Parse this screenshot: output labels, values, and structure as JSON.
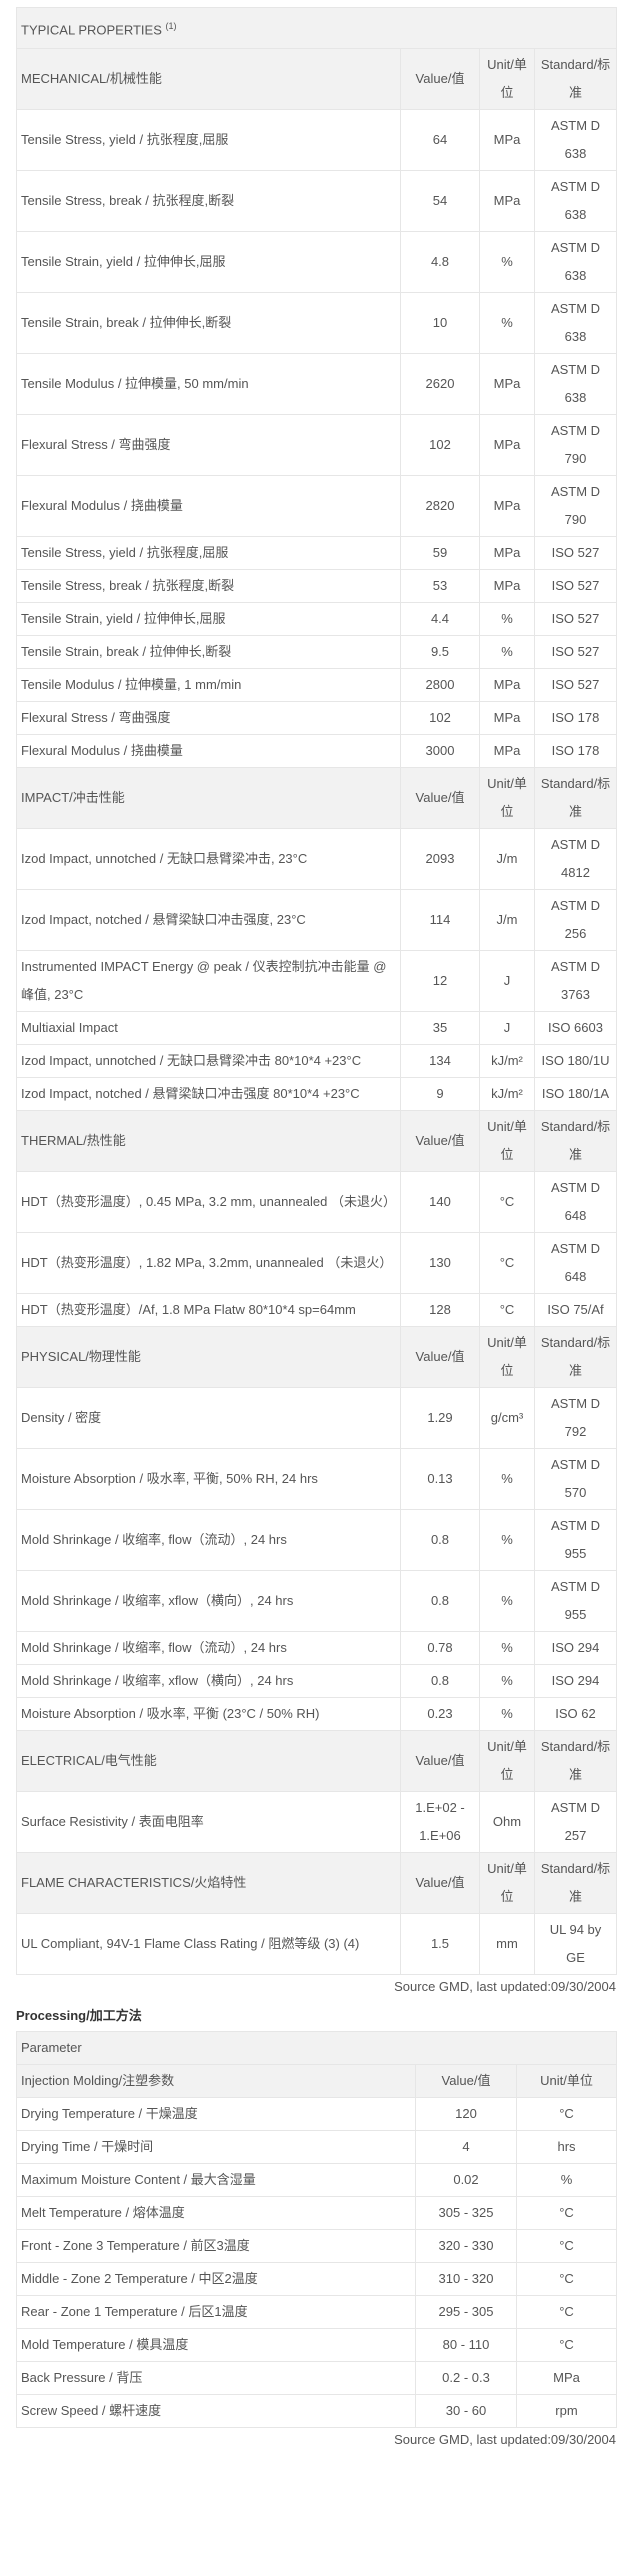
{
  "properties": {
    "title": "TYPICAL PROPERTIES",
    "title_note": "(1)",
    "value_label": "Value/值",
    "unit_label": "Unit/单位",
    "standard_label": "Standard/标准",
    "sections": [
      {
        "label": "MECHANICAL/机械性能",
        "rows": [
          [
            "Tensile Stress, yield / 抗张程度,屈服",
            "64",
            "MPa",
            "ASTM D 638"
          ],
          [
            "Tensile Stress, break / 抗张程度,断裂",
            "54",
            "MPa",
            "ASTM D 638"
          ],
          [
            "Tensile Strain, yield / 拉伸伸长,屈服",
            "4.8",
            "%",
            "ASTM D 638"
          ],
          [
            "Tensile Strain, break / 拉伸伸长,断裂",
            "10",
            "%",
            "ASTM D 638"
          ],
          [
            "Tensile Modulus / 拉伸模量, 50 mm/min",
            "2620",
            "MPa",
            "ASTM D 638"
          ],
          [
            "Flexural Stress / 弯曲强度",
            "102",
            "MPa",
            "ASTM D 790"
          ],
          [
            "Flexural Modulus / 挠曲模量",
            "2820",
            "MPa",
            "ASTM D 790"
          ],
          [
            "Tensile Stress, yield / 抗张程度,屈服",
            "59",
            "MPa",
            "ISO 527"
          ],
          [
            "Tensile Stress, break / 抗张程度,断裂",
            "53",
            "MPa",
            "ISO 527"
          ],
          [
            "Tensile Strain, yield / 拉伸伸长,屈服",
            "4.4",
            "%",
            "ISO 527"
          ],
          [
            "Tensile Strain, break / 拉伸伸长,断裂",
            "9.5",
            "%",
            "ISO 527"
          ],
          [
            "Tensile Modulus / 拉伸模量, 1 mm/min",
            "2800",
            "MPa",
            "ISO 527"
          ],
          [
            "Flexural Stress / 弯曲强度",
            "102",
            "MPa",
            "ISO 178"
          ],
          [
            "Flexural Modulus / 挠曲模量",
            "3000",
            "MPa",
            "ISO 178"
          ]
        ]
      },
      {
        "label": "IMPACT/冲击性能",
        "rows": [
          [
            "Izod Impact, unnotched / 无缺口悬臂梁冲击, 23°C",
            "2093",
            "J/m",
            "ASTM D 4812"
          ],
          [
            "Izod Impact, notched / 悬臂梁缺口冲击强度, 23°C",
            "114",
            "J/m",
            "ASTM D 256"
          ],
          [
            "Instrumented IMPACT Energy @ peak / 仪表控制抗冲击能量 @ 峰值, 23°C",
            "12",
            "J",
            "ASTM D 3763"
          ],
          [
            "Multiaxial Impact",
            "35",
            "J",
            "ISO 6603"
          ],
          [
            "Izod Impact, unnotched / 无缺口悬臂梁冲击 80*10*4 +23°C",
            "134",
            "kJ/m²",
            "ISO 180/1U"
          ],
          [
            "Izod Impact, notched / 悬臂梁缺口冲击强度 80*10*4 +23°C",
            "9",
            "kJ/m²",
            "ISO 180/1A"
          ]
        ]
      },
      {
        "label": "THERMAL/热性能",
        "rows": [
          [
            "HDT（热变形温度）, 0.45 MPa, 3.2 mm, unannealed （未退火）",
            "140",
            "°C",
            "ASTM D 648"
          ],
          [
            "HDT（热变形温度）, 1.82 MPa, 3.2mm, unannealed （未退火）",
            "130",
            "°C",
            "ASTM D 648"
          ],
          [
            "HDT（热变形温度）/Af, 1.8 MPa Flatw 80*10*4 sp=64mm",
            "128",
            "°C",
            "ISO 75/Af"
          ]
        ]
      },
      {
        "label": "PHYSICAL/物理性能",
        "rows": [
          [
            "Density / 密度",
            "1.29",
            "g/cm³",
            "ASTM D 792"
          ],
          [
            "Moisture Absorption / 吸水率, 平衡, 50% RH, 24 hrs",
            "0.13",
            "%",
            "ASTM D 570"
          ],
          [
            "Mold Shrinkage / 收缩率, flow（流动）, 24 hrs",
            "0.8",
            "%",
            "ASTM D 955"
          ],
          [
            "Mold Shrinkage / 收缩率, xflow（横向）, 24 hrs",
            "0.8",
            "%",
            "ASTM D 955"
          ],
          [
            "Mold Shrinkage / 收缩率, flow（流动）, 24 hrs",
            "0.78",
            "%",
            "ISO 294"
          ],
          [
            "Mold Shrinkage / 收缩率, xflow（横向）, 24 hrs",
            "0.8",
            "%",
            "ISO 294"
          ],
          [
            "Moisture Absorption / 吸水率, 平衡 (23°C / 50% RH)",
            "0.23",
            "%",
            "ISO 62"
          ]
        ]
      },
      {
        "label": "ELECTRICAL/电气性能",
        "rows": [
          [
            "Surface Resistivity / 表面电阻率",
            "1.E+02 - 1.E+06",
            "Ohm",
            "ASTM D 257"
          ]
        ]
      },
      {
        "label": "FLAME CHARACTERISTICS/火焰特性",
        "rows": [
          [
            "UL Compliant, 94V-1 Flame Class Rating / 阻燃等级 (3) (4)",
            "1.5",
            "mm",
            "UL 94 by GE"
          ]
        ]
      }
    ],
    "source": "Source GMD, last updated:09/30/2004"
  },
  "processing": {
    "title": "Processing/加工方法",
    "parameter_label": "Parameter",
    "section_label": "Injection Molding/注塑参数",
    "value_label": "Value/值",
    "unit_label": "Unit/单位",
    "rows": [
      [
        "Drying Temperature / 干燥温度",
        "120",
        "°C"
      ],
      [
        "Drying Time / 干燥时间",
        "4",
        "hrs"
      ],
      [
        "Maximum Moisture Content / 最大含湿量",
        "0.02",
        "%"
      ],
      [
        "Melt Temperature / 熔体温度",
        "305 - 325",
        "°C"
      ],
      [
        "Front - Zone 3 Temperature / 前区3温度",
        "320 - 330",
        "°C"
      ],
      [
        "Middle - Zone 2 Temperature / 中区2温度",
        "310 - 320",
        "°C"
      ],
      [
        "Rear - Zone 1 Temperature / 后区1温度",
        "295 - 305",
        "°C"
      ],
      [
        "Mold Temperature / 模具温度",
        "80 - 110",
        "°C"
      ],
      [
        "Back Pressure / 背压",
        "0.2 - 0.3",
        "MPa"
      ],
      [
        "Screw Speed / 螺杆速度",
        "30 - 60",
        "rpm"
      ]
    ],
    "source": "Source GMD, last updated:09/30/2004"
  }
}
